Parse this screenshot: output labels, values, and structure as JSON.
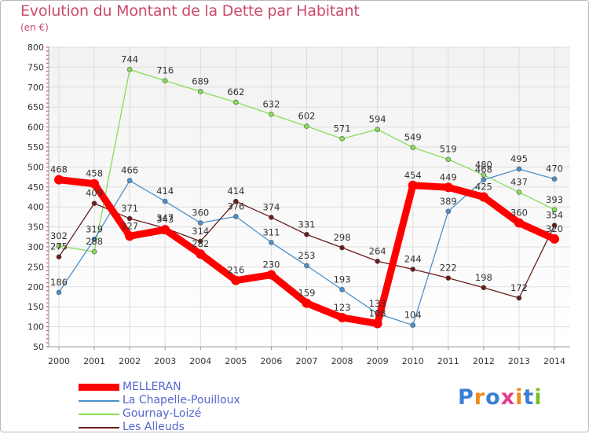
{
  "header": {
    "title": "Evolution du Montant de la Dette par Habitant",
    "subtitle": "(en €)"
  },
  "logo": {
    "text": "Proxiti",
    "colors": [
      "#3a7fd5",
      "#f08a1c",
      "#3a7fd5",
      "#e63c8c",
      "#f08a1c",
      "#3a7fd5",
      "#7cbf2a"
    ]
  },
  "chart_data": {
    "type": "line",
    "title": "Evolution du Montant de la Dette par Habitant",
    "subtitle": "(en €)",
    "xlabel": "",
    "ylabel": "",
    "x": [
      "2000",
      "2001",
      "2002",
      "2003",
      "2004",
      "2005",
      "2006",
      "2007",
      "2008",
      "2009",
      "2010",
      "2011",
      "2012",
      "2013",
      "2014"
    ],
    "ylim": [
      50,
      800
    ],
    "yticks": [
      50,
      100,
      150,
      200,
      250,
      300,
      350,
      400,
      450,
      500,
      550,
      600,
      650,
      700,
      750,
      800
    ],
    "grid": true,
    "legend_position": "bottom-left",
    "series": [
      {
        "name": "MELLERAN",
        "color": "#ff0000",
        "values": [
          468,
          458,
          327,
          343,
          282,
          216,
          230,
          159,
          123,
          108,
          454,
          449,
          425,
          360,
          320
        ],
        "labels": [
          "468",
          "458",
          "327",
          "343",
          "282",
          "216",
          "230",
          "159",
          "123",
          "108",
          "454",
          "449",
          "425",
          "360",
          "320"
        ]
      },
      {
        "name": "La Chapelle-Pouilloux",
        "color": "#4a90cc",
        "values": [
          186,
          319,
          466,
          414,
          360,
          376,
          311,
          253,
          193,
          133,
          104,
          389,
          468,
          495,
          470
        ],
        "labels": [
          "186",
          "319",
          "466",
          "414",
          "360",
          "376",
          "311",
          "253",
          "193",
          "133",
          "104",
          "389",
          "468",
          "495",
          "470"
        ]
      },
      {
        "name": "Gournay-Loizé",
        "color": "#88dd55",
        "values": [
          302,
          288,
          744,
          716,
          689,
          662,
          632,
          602,
          571,
          594,
          549,
          519,
          480,
          437,
          393
        ],
        "labels": [
          "302",
          "288",
          "744",
          "716",
          "689",
          "662",
          "632",
          "602",
          "571",
          "594",
          "549",
          "519",
          "480",
          "437",
          "393"
        ]
      },
      {
        "name": "Les Alleuds",
        "color": "#6b1a1a",
        "values": [
          275,
          409,
          371,
          347,
          314,
          414,
          374,
          331,
          298,
          264,
          244,
          222,
          198,
          172,
          354
        ],
        "labels": [
          "275",
          "409",
          "371",
          "347",
          "314",
          "414",
          "374",
          "331",
          "298",
          "264",
          "244",
          "222",
          "198",
          "172",
          "354"
        ]
      }
    ]
  }
}
